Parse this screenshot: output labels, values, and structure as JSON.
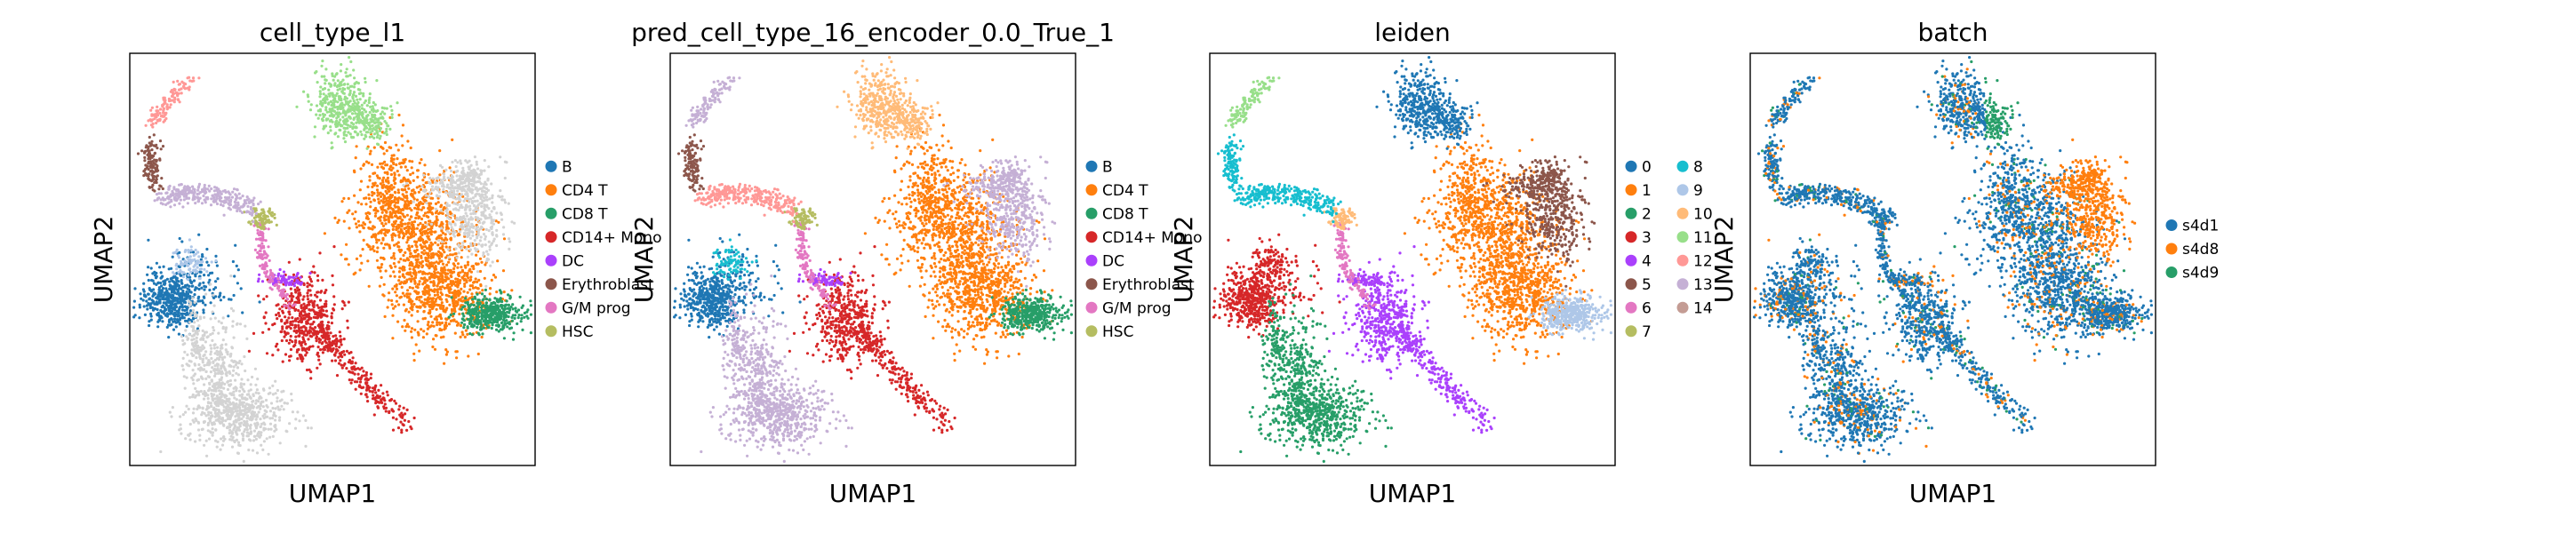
{
  "chart_data": [
    {
      "type": "scatter",
      "title": "cell_type_l1",
      "xlabel": "UMAP1",
      "ylabel": "UMAP2",
      "grid": false,
      "legend_placement": "right",
      "legend": [
        {
          "name": "B",
          "color": "#1f77b4"
        },
        {
          "name": "CD4 T",
          "color": "#ff7f0e"
        },
        {
          "name": "CD8 T",
          "color": "#279e68"
        },
        {
          "name": "CD14+ Mono",
          "color": "#d62728"
        },
        {
          "name": "DC",
          "color": "#aa40fc"
        },
        {
          "name": "Erythroblast",
          "color": "#8c564b"
        },
        {
          "name": "G/M prog",
          "color": "#e377c2"
        },
        {
          "name": "HSC",
          "color": "#b5bd61"
        }
      ]
    },
    {
      "type": "scatter",
      "title": "pred_cell_type_16_encoder_0.0_True_1",
      "xlabel": "UMAP1",
      "ylabel": "UMAP2",
      "grid": false,
      "legend_placement": "right",
      "legend": [
        {
          "name": "B",
          "color": "#1f77b4"
        },
        {
          "name": "CD4 T",
          "color": "#ff7f0e"
        },
        {
          "name": "CD8 T",
          "color": "#279e68"
        },
        {
          "name": "CD14+ Mono",
          "color": "#d62728"
        },
        {
          "name": "DC",
          "color": "#aa40fc"
        },
        {
          "name": "Erythroblast",
          "color": "#8c564b"
        },
        {
          "name": "G/M prog",
          "color": "#e377c2"
        },
        {
          "name": "HSC",
          "color": "#b5bd61"
        }
      ]
    },
    {
      "type": "scatter",
      "title": "leiden",
      "xlabel": "UMAP1",
      "ylabel": "UMAP2",
      "grid": false,
      "legend_placement": "right",
      "legend": [
        {
          "name": "0",
          "color": "#1f77b4"
        },
        {
          "name": "1",
          "color": "#ff7f0e"
        },
        {
          "name": "2",
          "color": "#279e68"
        },
        {
          "name": "3",
          "color": "#d62728"
        },
        {
          "name": "4",
          "color": "#aa40fc"
        },
        {
          "name": "5",
          "color": "#8c564b"
        },
        {
          "name": "6",
          "color": "#e377c2"
        },
        {
          "name": "7",
          "color": "#b5bd61"
        },
        {
          "name": "8",
          "color": "#17becf"
        },
        {
          "name": "9",
          "color": "#aec7e8"
        },
        {
          "name": "10",
          "color": "#ffbb78"
        },
        {
          "name": "11",
          "color": "#98df8a"
        },
        {
          "name": "12",
          "color": "#ff9896"
        },
        {
          "name": "13",
          "color": "#c5b0d5"
        },
        {
          "name": "14",
          "color": "#c49c94"
        }
      ]
    },
    {
      "type": "scatter",
      "title": "batch",
      "xlabel": "UMAP1",
      "ylabel": "UMAP2",
      "grid": false,
      "legend_placement": "right",
      "legend": [
        {
          "name": "s4d1",
          "color": "#1f77b4"
        },
        {
          "name": "s4d8",
          "color": "#ff7f0e"
        },
        {
          "name": "s4d9",
          "color": "#279e68"
        }
      ]
    }
  ]
}
